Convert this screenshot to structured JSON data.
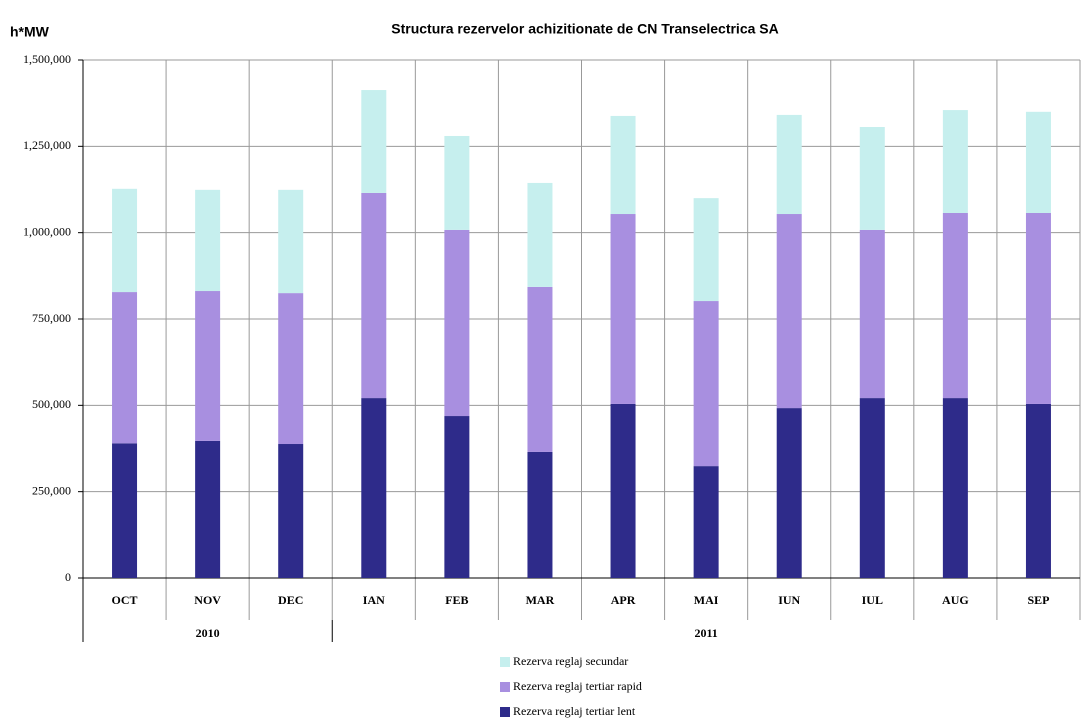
{
  "chart_data": {
    "type": "stacked_bar",
    "title": "Structura rezervelor achizitionate de CN Transelectrica SA",
    "y_label": "h*MW",
    "categories": [
      "OCT",
      "NOV",
      "DEC",
      "IAN",
      "FEB",
      "MAR",
      "APR",
      "MAI",
      "IUN",
      "IUL",
      "AUG",
      "SEP"
    ],
    "group_labels": [
      "2010",
      "2011"
    ],
    "group_sizes": [
      3,
      9
    ],
    "series": [
      {
        "name": "Rezerva reglaj tertiar lent",
        "color": "#2e2b8a",
        "values": [
          390000,
          397000,
          388000,
          521000,
          469000,
          365000,
          504000,
          324000,
          492000,
          521000,
          521000,
          504000
        ]
      },
      {
        "name": "Rezerva reglaj tertiar rapid",
        "color": "#a88fe0",
        "values": [
          438000,
          434000,
          437000,
          594000,
          539000,
          478000,
          550000,
          478000,
          562000,
          487000,
          536000,
          553000
        ]
      },
      {
        "name": "Rezerva reglaj secundar",
        "color": "#c6efee",
        "values": [
          299000,
          293000,
          299000,
          298000,
          272000,
          301000,
          284000,
          298000,
          287000,
          298000,
          298000,
          293000
        ]
      }
    ],
    "ylim": [
      0,
      1500000
    ],
    "yticks": [
      0,
      {
        "value": 250000,
        "label": "250,000"
      },
      {
        "value": 500000,
        "label": "500,000"
      },
      {
        "value": 750000,
        "label": "750,000"
      },
      {
        "value": 1000000,
        "label": "1,000,000"
      },
      {
        "value": 1250000,
        "label": "1,250,000"
      },
      {
        "value": 1500000,
        "label": "1,500,000"
      }
    ],
    "grid": true,
    "legend": "bottom"
  }
}
